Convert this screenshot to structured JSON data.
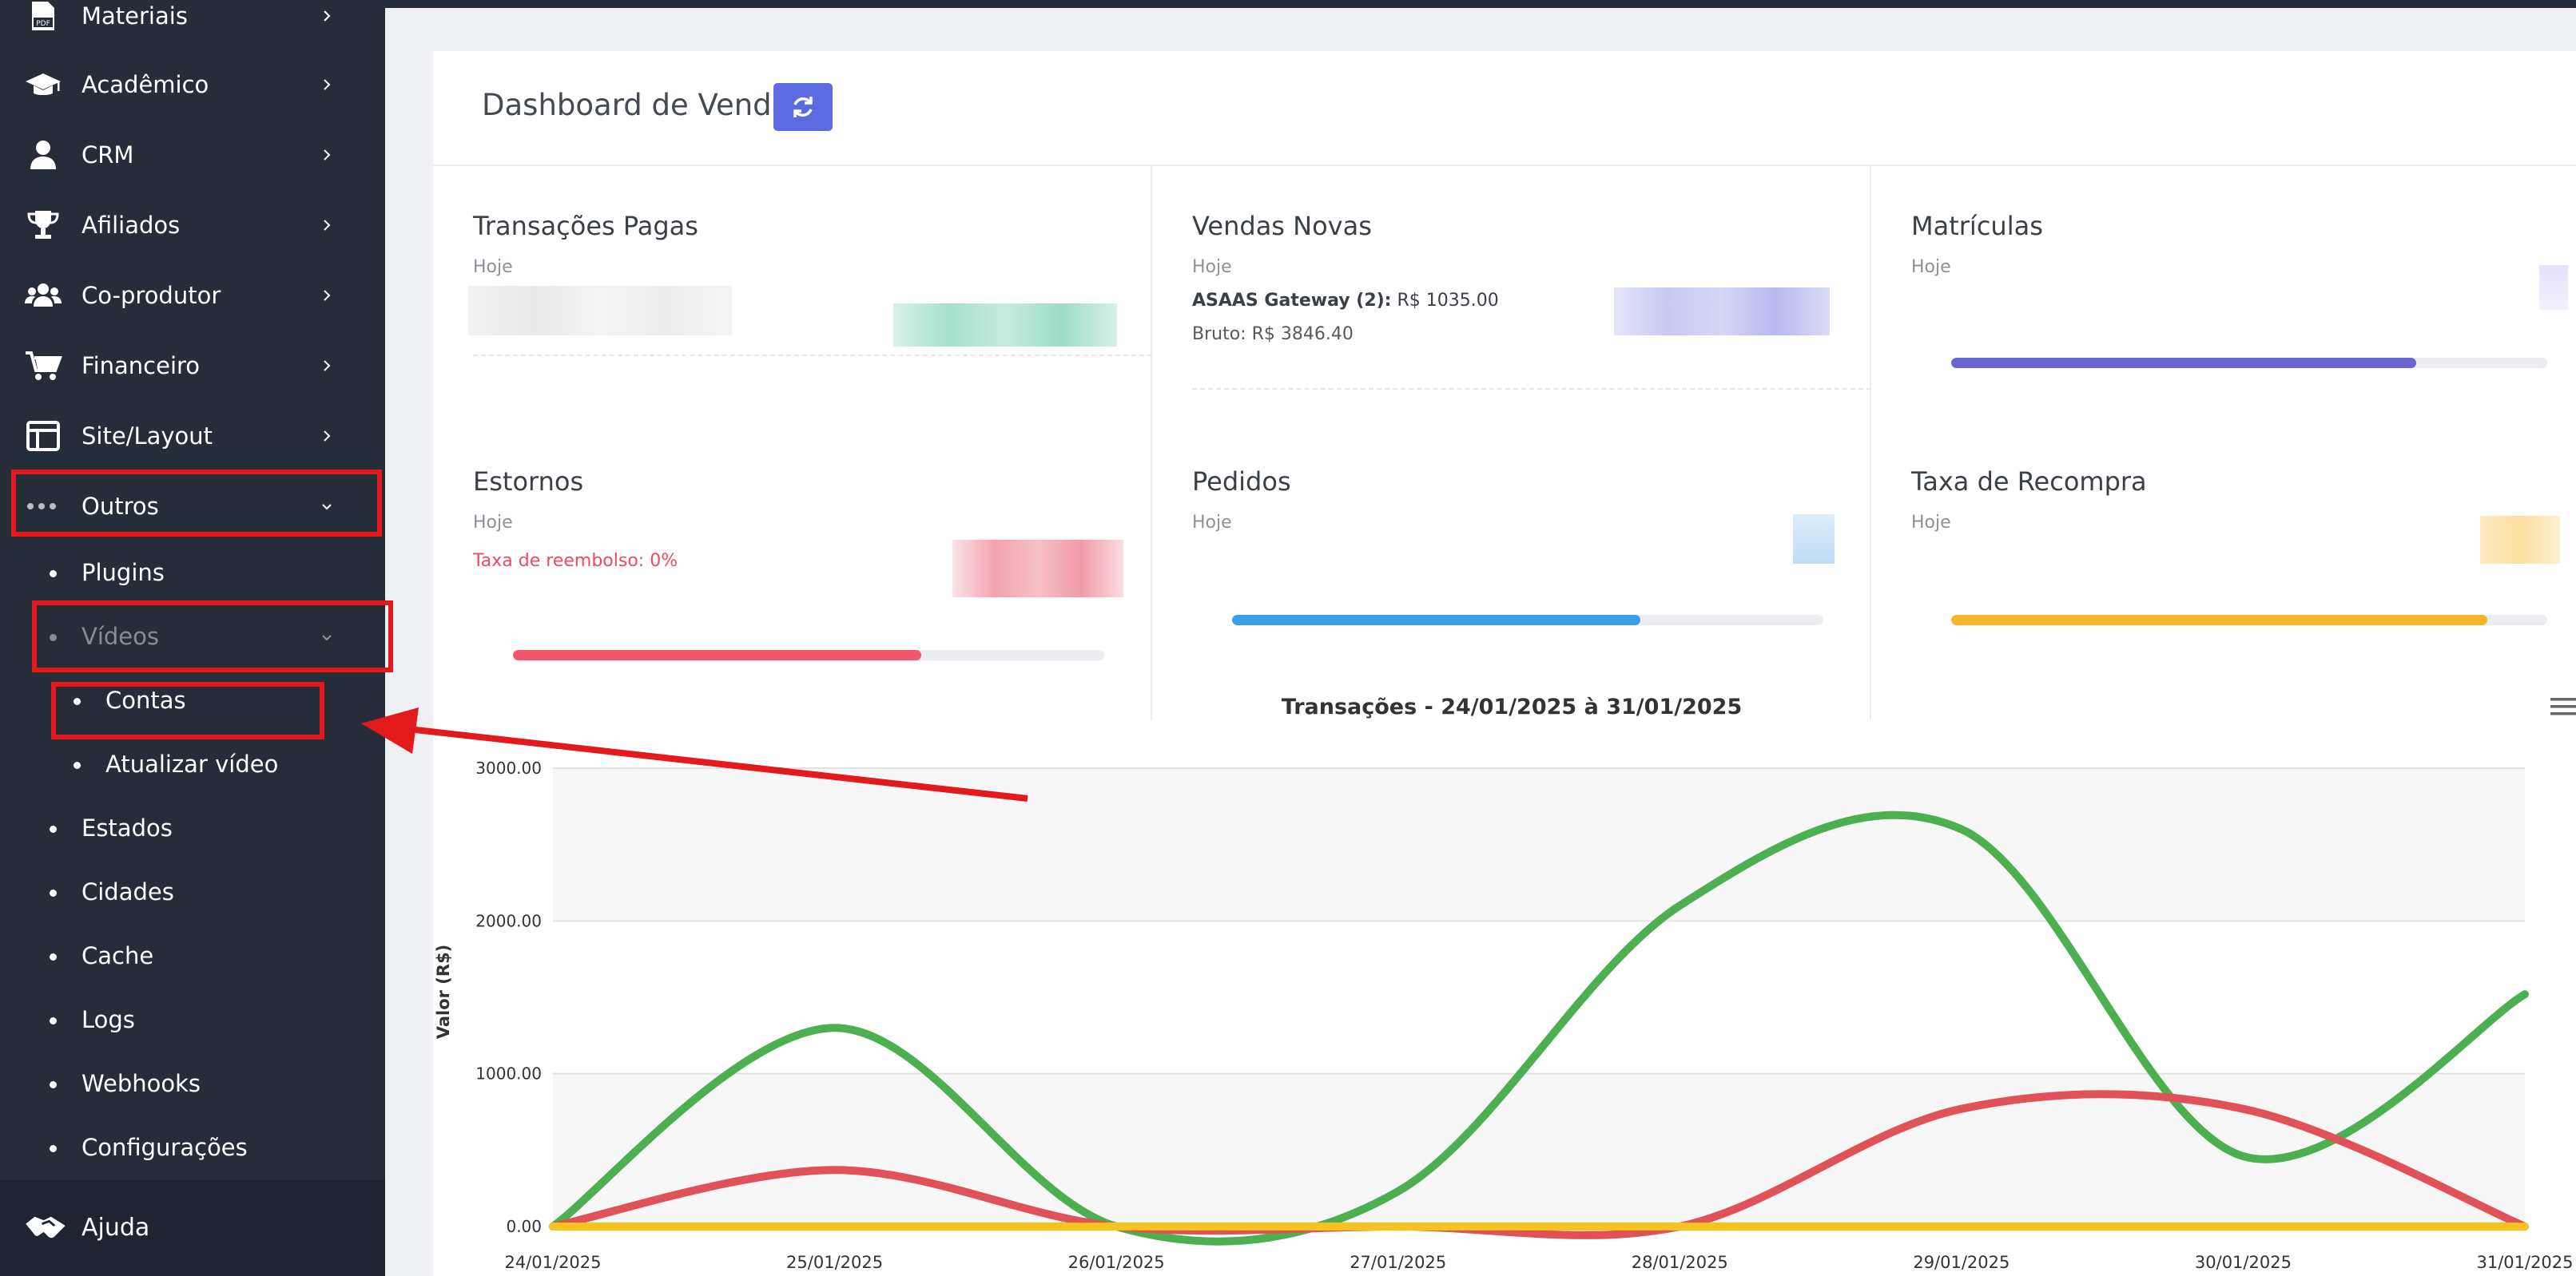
{
  "sidebar": {
    "items": [
      {
        "label": "Materiais",
        "icon": "pdf-icon"
      },
      {
        "label": "Acadêmico",
        "icon": "graduation-cap-icon"
      },
      {
        "label": "CRM",
        "icon": "user-icon"
      },
      {
        "label": "Afiliados",
        "icon": "trophy-icon"
      },
      {
        "label": "Co-produtor",
        "icon": "users-icon"
      },
      {
        "label": "Financeiro",
        "icon": "cart-icon"
      },
      {
        "label": "Site/Layout",
        "icon": "layout-icon"
      },
      {
        "label": "Outros",
        "icon": "more-dots-icon"
      }
    ],
    "outros_sub": {
      "plugins": "Plugins",
      "videos": "Vídeos",
      "contas": "Contas",
      "atualizar_video": "Atualizar vídeo",
      "estados": "Estados",
      "cidades": "Cidades",
      "cache": "Cache",
      "logs": "Logs",
      "webhooks": "Webhooks",
      "configuracoes": "Configurações"
    },
    "help": {
      "label": "Ajuda",
      "icon": "handshake-icon"
    }
  },
  "header": {
    "title": "Dashboard de Vendas",
    "refresh_icon": "refresh-icon"
  },
  "cards": {
    "transacoes": {
      "title": "Transações Pagas",
      "sub": "Hoje"
    },
    "vendas": {
      "title": "Vendas Novas",
      "sub": "Hoje",
      "gateway_label": "ASAAS Gateway (2):",
      "gateway_value": "R$ 1035.00",
      "bruto": "Bruto: R$ 3846.40"
    },
    "matriculas": {
      "title": "Matrículas",
      "sub": "Hoje",
      "progress": 0.78,
      "color": "#6a63d0"
    },
    "estornos": {
      "title": "Estornos",
      "sub": "Hoje",
      "refund_rate": "Taxa de reembolso: 0%",
      "progress": 0.69,
      "color": "#f0566a"
    },
    "pedidos": {
      "title": "Pedidos",
      "sub": "Hoje",
      "progress": 0.69,
      "color": "#3b9ee8"
    },
    "recompra": {
      "title": "Taxa de Recompra",
      "sub": "Hoje",
      "progress": 0.9,
      "color": "#f8b526"
    }
  },
  "menu_icon": "hamburger-icon",
  "chart_data": {
    "type": "line",
    "title": "Transações - 24/01/2025 à 31/01/2025",
    "ylabel": "Valor (R$)",
    "xlabel": "",
    "categories": [
      "24/01/2025",
      "25/01/2025",
      "26/01/2025",
      "27/01/2025",
      "28/01/2025",
      "29/01/2025",
      "30/01/2025",
      "31/01/2025"
    ],
    "yticks": [
      "0.00",
      "1000.00",
      "2000.00",
      "3000.00"
    ],
    "ylim": [
      0,
      3000
    ],
    "grid": true,
    "series": [
      {
        "color": "#4caf50",
        "values": [
          0,
          1300,
          0,
          230,
          2100,
          2600,
          460,
          1520
        ]
      },
      {
        "color": "#e05257",
        "values": [
          0,
          370,
          0,
          0,
          0,
          770,
          770,
          0
        ]
      },
      {
        "color": "#f9c31f",
        "values": [
          0,
          0,
          0,
          0,
          0,
          0,
          0,
          0
        ]
      }
    ]
  }
}
